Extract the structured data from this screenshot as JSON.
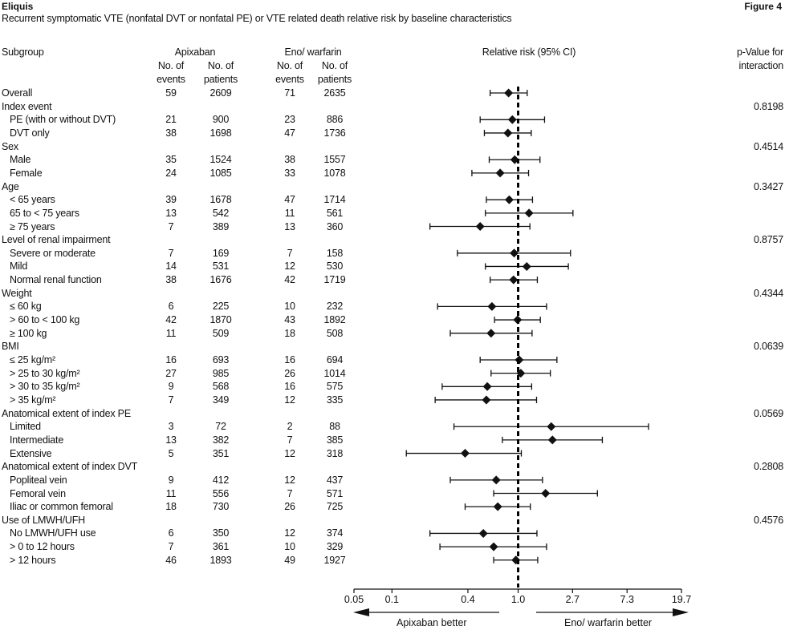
{
  "header": {
    "title": "Eliquis",
    "figure_label": "Figure 4",
    "subtitle": "Recurrent symptomatic VTE (nonfatal DVT or nonfatal PE) or VTE related death relative risk by baseline characteristics"
  },
  "columns": {
    "subgroup": "Subgroup",
    "apixaban": "Apixaban",
    "comparator": "Eno/ warfarin",
    "events_1": "No. of",
    "events_2": "events",
    "patients_1": "No. of",
    "patients_2": "patients",
    "rr": "Relative risk (95% CI)",
    "pvalue_1": "p-Value for",
    "pvalue_2": "interaction"
  },
  "axis": {
    "ticks": [
      "0.05",
      "0.1",
      "0.4",
      "1.0",
      "2.7",
      "7.3",
      "19.7"
    ],
    "left_arrow_label": "Apixaban better",
    "right_arrow_label": "Eno/ warfarin better"
  },
  "chart_data": {
    "type": "forest",
    "x_scale": "log",
    "xlim": [
      0.05,
      19.7
    ],
    "reference_line": 1.0,
    "rows": [
      {
        "label": "Overall",
        "level": 0,
        "apx_events": "59",
        "apx_patients": "2609",
        "cmp_events": "71",
        "cmp_patients": "2635",
        "est": 0.84,
        "lo": 0.6,
        "hi": 1.18,
        "p": ""
      },
      {
        "label": "Index event",
        "level": 0,
        "header": true,
        "p": "0.8198"
      },
      {
        "label": "PE (with or without DVT)",
        "level": 1,
        "apx_events": "21",
        "apx_patients": "900",
        "cmp_events": "23",
        "cmp_patients": "886",
        "est": 0.9,
        "lo": 0.5,
        "hi": 1.62,
        "p": ""
      },
      {
        "label": "DVT only",
        "level": 1,
        "apx_events": "38",
        "apx_patients": "1698",
        "cmp_events": "47",
        "cmp_patients": "1736",
        "est": 0.83,
        "lo": 0.54,
        "hi": 1.27,
        "p": ""
      },
      {
        "label": "Sex",
        "level": 0,
        "header": true,
        "p": "0.4514"
      },
      {
        "label": "Male",
        "level": 1,
        "apx_events": "35",
        "apx_patients": "1524",
        "cmp_events": "38",
        "cmp_patients": "1557",
        "est": 0.94,
        "lo": 0.59,
        "hi": 1.49,
        "p": ""
      },
      {
        "label": "Female",
        "level": 1,
        "apx_events": "24",
        "apx_patients": "1085",
        "cmp_events": "33",
        "cmp_patients": "1078",
        "est": 0.72,
        "lo": 0.43,
        "hi": 1.21,
        "p": ""
      },
      {
        "label": "Age",
        "level": 0,
        "header": true,
        "p": "0.3427"
      },
      {
        "label": "< 65 years",
        "level": 1,
        "apx_events": "39",
        "apx_patients": "1678",
        "cmp_events": "47",
        "cmp_patients": "1714",
        "est": 0.85,
        "lo": 0.56,
        "hi": 1.3,
        "p": ""
      },
      {
        "label": "65 to < 75 years",
        "level": 1,
        "apx_events": "13",
        "apx_patients": "542",
        "cmp_events": "11",
        "cmp_patients": "561",
        "est": 1.22,
        "lo": 0.55,
        "hi": 2.72,
        "p": ""
      },
      {
        "label": "≥ 75 years",
        "level": 1,
        "apx_events": "7",
        "apx_patients": "389",
        "cmp_events": "13",
        "cmp_patients": "360",
        "est": 0.5,
        "lo": 0.2,
        "hi": 1.24,
        "p": ""
      },
      {
        "label": "Level of renal impairment",
        "level": 0,
        "header": true,
        "p": "0.8757"
      },
      {
        "label": "Severe or moderate",
        "level": 1,
        "apx_events": "7",
        "apx_patients": "169",
        "cmp_events": "7",
        "cmp_patients": "158",
        "est": 0.93,
        "lo": 0.33,
        "hi": 2.6,
        "p": ""
      },
      {
        "label": "Mild",
        "level": 1,
        "apx_events": "14",
        "apx_patients": "531",
        "cmp_events": "12",
        "cmp_patients": "530",
        "est": 1.17,
        "lo": 0.55,
        "hi": 2.5,
        "p": ""
      },
      {
        "label": "Normal renal function",
        "level": 1,
        "apx_events": "38",
        "apx_patients": "1676",
        "cmp_events": "42",
        "cmp_patients": "1719",
        "est": 0.92,
        "lo": 0.6,
        "hi": 1.42,
        "p": ""
      },
      {
        "label": "Weight",
        "level": 0,
        "header": true,
        "p": "0.4344"
      },
      {
        "label": "≤ 60 kg",
        "level": 1,
        "apx_events": "6",
        "apx_patients": "225",
        "cmp_events": "10",
        "cmp_patients": "232",
        "est": 0.62,
        "lo": 0.23,
        "hi": 1.68,
        "p": ""
      },
      {
        "label": "> 60 to < 100 kg",
        "level": 1,
        "apx_events": "42",
        "apx_patients": "1870",
        "cmp_events": "43",
        "cmp_patients": "1892",
        "est": 0.99,
        "lo": 0.65,
        "hi": 1.5,
        "p": ""
      },
      {
        "label": "≥ 100 kg",
        "level": 1,
        "apx_events": "11",
        "apx_patients": "509",
        "cmp_events": "18",
        "cmp_patients": "508",
        "est": 0.61,
        "lo": 0.29,
        "hi": 1.29,
        "p": ""
      },
      {
        "label": "BMI",
        "level": 0,
        "header": true,
        "p": "0.0639"
      },
      {
        "label": "≤ 25 kg/m²",
        "level": 1,
        "apx_events": "16",
        "apx_patients": "693",
        "cmp_events": "16",
        "cmp_patients": "694",
        "est": 1.02,
        "lo": 0.5,
        "hi": 2.03,
        "p": ""
      },
      {
        "label": "> 25 to 30 kg/m²",
        "level": 1,
        "apx_events": "27",
        "apx_patients": "985",
        "cmp_events": "26",
        "cmp_patients": "1014",
        "est": 1.05,
        "lo": 0.61,
        "hi": 1.8,
        "p": ""
      },
      {
        "label": "> 30 to 35 kg/m²",
        "level": 1,
        "apx_events": "9",
        "apx_patients": "568",
        "cmp_events": "16",
        "cmp_patients": "575",
        "est": 0.57,
        "lo": 0.25,
        "hi": 1.28,
        "p": ""
      },
      {
        "label": "> 35 kg/m²",
        "level": 1,
        "apx_events": "7",
        "apx_patients": "349",
        "cmp_events": "12",
        "cmp_patients": "335",
        "est": 0.56,
        "lo": 0.22,
        "hi": 1.4,
        "p": ""
      },
      {
        "label": "Anatomical extent of index PE",
        "level": 0,
        "header": true,
        "p": "0.0569"
      },
      {
        "label": "Limited",
        "level": 1,
        "apx_events": "3",
        "apx_patients": "72",
        "cmp_events": "2",
        "cmp_patients": "88",
        "est": 1.83,
        "lo": 0.31,
        "hi": 10.8,
        "p": ""
      },
      {
        "label": "Intermediate",
        "level": 1,
        "apx_events": "13",
        "apx_patients": "382",
        "cmp_events": "7",
        "cmp_patients": "385",
        "est": 1.87,
        "lo": 0.75,
        "hi": 4.65,
        "p": ""
      },
      {
        "label": "Extensive",
        "level": 1,
        "apx_events": "5",
        "apx_patients": "351",
        "cmp_events": "12",
        "cmp_patients": "318",
        "est": 0.38,
        "lo": 0.13,
        "hi": 1.06,
        "p": ""
      },
      {
        "label": "Anatomical extent of index DVT",
        "level": 0,
        "header": true,
        "p": "0.2808"
      },
      {
        "label": "Popliteal vein",
        "level": 1,
        "apx_events": "9",
        "apx_patients": "412",
        "cmp_events": "12",
        "cmp_patients": "437",
        "est": 0.67,
        "lo": 0.29,
        "hi": 1.56,
        "p": ""
      },
      {
        "label": "Femoral vein",
        "level": 1,
        "apx_events": "11",
        "apx_patients": "556",
        "cmp_events": "7",
        "cmp_patients": "571",
        "est": 1.65,
        "lo": 0.64,
        "hi": 4.25,
        "p": ""
      },
      {
        "label": "Iliac or common femoral",
        "level": 1,
        "apx_events": "18",
        "apx_patients": "730",
        "cmp_events": "26",
        "cmp_patients": "725",
        "est": 0.69,
        "lo": 0.38,
        "hi": 1.25,
        "p": ""
      },
      {
        "label": "Use of LMWH/UFH",
        "level": 0,
        "header": true,
        "p": "0.4576"
      },
      {
        "label": "No LMWH/UFH use",
        "level": 1,
        "apx_events": "6",
        "apx_patients": "350",
        "cmp_events": "12",
        "cmp_patients": "374",
        "est": 0.53,
        "lo": 0.2,
        "hi": 1.41,
        "p": ""
      },
      {
        "label": "> 0 to 12 hours",
        "level": 1,
        "apx_events": "7",
        "apx_patients": "361",
        "cmp_events": "10",
        "cmp_patients": "329",
        "est": 0.64,
        "lo": 0.24,
        "hi": 1.68,
        "p": ""
      },
      {
        "label": "> 12 hours",
        "level": 1,
        "apx_events": "46",
        "apx_patients": "1893",
        "cmp_events": "49",
        "cmp_patients": "1927",
        "est": 0.96,
        "lo": 0.64,
        "hi": 1.43,
        "p": ""
      }
    ]
  }
}
